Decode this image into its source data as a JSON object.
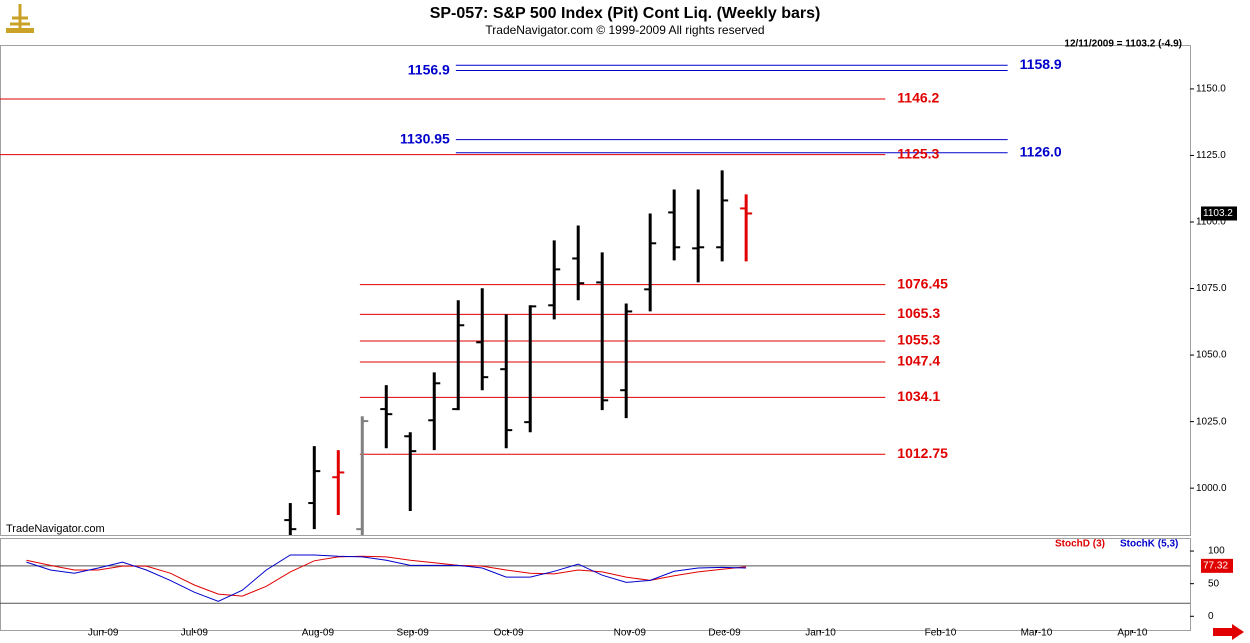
{
  "chart_data": {
    "type": "ohlc",
    "title": "SP-057:  S&P 500 Index (Pit) Cont Liq.  (Weekly bars)",
    "subtitle": "TradeNavigator.com © 1999-2009 All rights reserved",
    "info": "12/11/2009 = 1103.2 (-4.9)",
    "watermark": "TradeNavigator.com",
    "xlim": [
      -0.1,
      49.5
    ],
    "xticks": [
      {
        "value": 4.2,
        "label": "Jun-09"
      },
      {
        "value": 8,
        "label": "Jul-09"
      },
      {
        "value": 13.15,
        "label": "Aug-09"
      },
      {
        "value": 17.1,
        "label": "Sep-09"
      },
      {
        "value": 21.1,
        "label": "Oct-09"
      },
      {
        "value": 26.15,
        "label": "Nov-09"
      },
      {
        "value": 30.1,
        "label": "Dec-09"
      },
      {
        "value": 34.1,
        "label": "Jan-10"
      },
      {
        "value": 39.1,
        "label": "Feb-10"
      },
      {
        "value": 43.1,
        "label": "Mar-10"
      },
      {
        "value": 47.1,
        "label": "Apr-10"
      }
    ],
    "ylim": [
      982.4,
      1166.5
    ],
    "yticks": [
      {
        "value": 1000,
        "label": "1000.0"
      },
      {
        "value": 1025,
        "label": "1025.0"
      },
      {
        "value": 1050,
        "label": "1050.0"
      },
      {
        "value": 1075,
        "label": "1075.0"
      },
      {
        "value": 1100,
        "label": "1100.0"
      },
      {
        "value": 1125,
        "label": "1125.0"
      },
      {
        "value": 1150,
        "label": "1150.0"
      }
    ],
    "x": [
      12,
      13,
      14,
      15,
      16,
      17,
      18,
      19,
      20,
      21,
      22,
      23,
      24,
      25,
      26,
      27,
      28,
      29,
      30,
      31
    ],
    "open": [
      988,
      994.4,
      1004.1,
      984.6,
      1029.7,
      1019.5,
      1025.5,
      1029.7,
      1054.8,
      1044.7,
      1024.8,
      1068.7,
      1086.3,
      1077.3,
      1036.8,
      1074.7,
      1103.6,
      1090.1,
      1090.5,
      1105.1
    ],
    "high": [
      994.4,
      1015.8,
      1014.3,
      1027,
      1038.7,
      1021,
      1043.5,
      1070.6,
      1075.1,
      1065.3,
      1068.7,
      1093.1,
      1098.7,
      1088.6,
      1069.4,
      1103.2,
      1112.2,
      1112.2,
      1119.4,
      1110.4
    ],
    "low": [
      982.4,
      984.6,
      989.9,
      982.4,
      1015,
      991.4,
      1014.3,
      1029.3,
      1036.8,
      1015,
      1021,
      1063.4,
      1070.6,
      1029.3,
      1026.3,
      1066.4,
      1085.6,
      1077.3,
      1085.2,
      1085.2
    ],
    "close": [
      984.6,
      1006.4,
      1005.9,
      1025.2,
      1027.8,
      1013.9,
      1039.4,
      1061.2,
      1041.7,
      1021.8,
      1068.3,
      1082.2,
      1077,
      1033,
      1066.4,
      1092,
      1090.5,
      1090.5,
      1108.1,
      1103.2
    ],
    "colors": [
      "#000000",
      "#000000",
      "#e00000",
      "#808080",
      "#000000",
      "#000000",
      "#000000",
      "#000000",
      "#000000",
      "#000000",
      "#000000",
      "#000000",
      "#000000",
      "#000000",
      "#000000",
      "#000000",
      "#000000",
      "#000000",
      "#000000",
      "#e00000"
    ],
    "last_price": 1103.2,
    "levels": [
      {
        "value": 1158.9,
        "from": 18.9,
        "to": 41.9,
        "side": "right",
        "color": "#0000cc"
      },
      {
        "value": 1156.9,
        "from": 18.9,
        "to": 41.9,
        "side": "left",
        "color": "#0000cc"
      },
      {
        "value": 1146.2,
        "from": -0.1,
        "to": 36.8,
        "side": "right",
        "color": "#e00000"
      },
      {
        "value": 1130.95,
        "from": 18.9,
        "to": 41.9,
        "side": "left",
        "color": "#0000cc"
      },
      {
        "value": 1126,
        "label": "1126.0",
        "from": 18.9,
        "to": 41.9,
        "side": "right",
        "color": "#0000cc"
      },
      {
        "value": 1125.3,
        "from": -0.1,
        "to": 36.8,
        "side": "right",
        "color": "#e00000"
      },
      {
        "value": 1076.45,
        "from": 14.9,
        "to": 36.8,
        "side": "right",
        "color": "#e00000"
      },
      {
        "value": 1065.3,
        "from": 14.9,
        "to": 36.8,
        "side": "right",
        "color": "#e00000"
      },
      {
        "value": 1055.3,
        "from": 14.9,
        "to": 36.8,
        "side": "right",
        "color": "#e00000"
      },
      {
        "value": 1047.4,
        "from": 14.9,
        "to": 36.8,
        "side": "right",
        "color": "#e00000"
      },
      {
        "value": 1034.1,
        "from": 14.9,
        "to": 36.8,
        "side": "right",
        "color": "#e00000"
      },
      {
        "value": 1012.75,
        "from": 14.9,
        "to": 36.8,
        "side": "right",
        "color": "#e00000"
      }
    ],
    "stoch": {
      "x": [
        1,
        2,
        3,
        4,
        5,
        6,
        7,
        8,
        9,
        10,
        11,
        12,
        13,
        14,
        15,
        16,
        17,
        18,
        19,
        20,
        21,
        22,
        23,
        24,
        25,
        26,
        27,
        28,
        29,
        30,
        31
      ],
      "ylim": [
        -21,
        120
      ],
      "yticks": [
        0,
        50,
        100
      ],
      "levels": [
        20
      ],
      "last_value": 77.32,
      "series": [
        {
          "name": "StochD (3)",
          "color": "#e00000",
          "values": [
            86,
            78,
            71,
            71,
            77,
            77,
            66,
            48,
            34,
            31,
            46,
            68,
            85,
            91,
            92,
            91,
            86,
            82,
            78,
            77,
            71,
            66,
            65,
            71,
            68,
            60,
            55,
            62,
            68,
            72,
            76
          ]
        },
        {
          "name": "StochK (5,3)",
          "color": "#0000cc",
          "values": [
            83,
            71,
            66,
            74,
            83,
            71,
            55,
            37,
            23,
            40,
            71,
            94,
            94,
            92,
            91,
            86,
            78,
            78,
            78,
            74,
            60,
            60,
            69,
            80,
            63,
            52,
            55,
            69,
            74,
            75,
            74
          ]
        }
      ]
    }
  }
}
